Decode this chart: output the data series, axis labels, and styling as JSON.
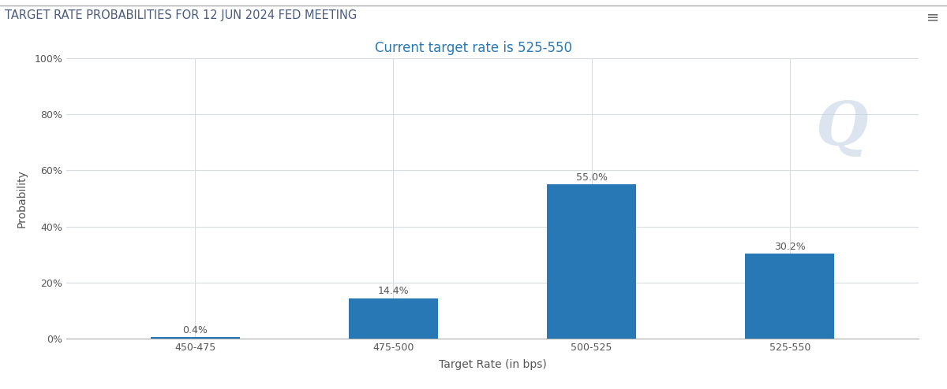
{
  "title_top": "TARGET RATE PROBABILITIES FOR 12 JUN 2024 FED MEETING",
  "subtitle": "Current target rate is 525-550",
  "categories": [
    "450-475",
    "475-500",
    "500-525",
    "525-550"
  ],
  "values": [
    0.4,
    14.4,
    55.0,
    30.2
  ],
  "bar_color": "#2878b5",
  "xlabel": "Target Rate (in bps)",
  "ylabel": "Probability",
  "ylim": [
    0,
    100
  ],
  "yticks": [
    0,
    20,
    40,
    60,
    80,
    100
  ],
  "ytick_labels": [
    "0%",
    "20%",
    "40%",
    "60%",
    "80%",
    "100%"
  ],
  "background_color": "#ffffff",
  "grid_color": "#d8dce0",
  "title_fontsize": 10.5,
  "subtitle_fontsize": 12,
  "tick_fontsize": 9,
  "bar_label_fontsize": 9,
  "axis_label_fontsize": 10,
  "title_color": "#4a5a7a",
  "subtitle_color": "#2878b5",
  "text_color": "#555555",
  "watermark_text": "Q",
  "watermark_color": "#c5d5e5",
  "watermark_fontsize": 55,
  "watermark_alpha": 0.6
}
